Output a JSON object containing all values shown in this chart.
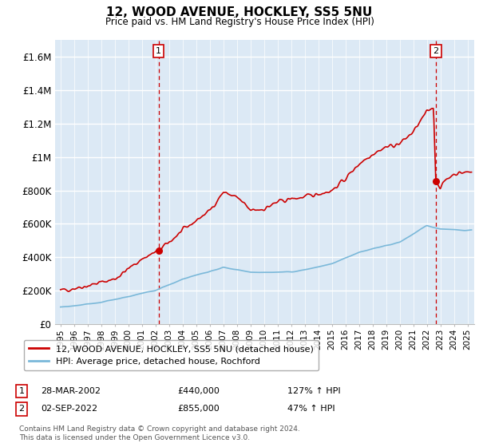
{
  "title": "12, WOOD AVENUE, HOCKLEY, SS5 5NU",
  "subtitle": "Price paid vs. HM Land Registry's House Price Index (HPI)",
  "ylim": [
    0,
    1700000
  ],
  "yticks": [
    0,
    200000,
    400000,
    600000,
    800000,
    1000000,
    1200000,
    1400000,
    1600000
  ],
  "ytick_labels": [
    "£0",
    "£200K",
    "£400K",
    "£600K",
    "£800K",
    "£1M",
    "£1.2M",
    "£1.4M",
    "£1.6M"
  ],
  "xlim_start": 1994.6,
  "xlim_end": 2025.5,
  "xtick_years": [
    1995,
    1996,
    1997,
    1998,
    1999,
    2000,
    2001,
    2002,
    2003,
    2004,
    2005,
    2006,
    2007,
    2008,
    2009,
    2010,
    2011,
    2012,
    2013,
    2014,
    2015,
    2016,
    2017,
    2018,
    2019,
    2020,
    2021,
    2022,
    2023,
    2024,
    2025
  ],
  "sale1_x": 2002.24,
  "sale1_y": 440000,
  "sale1_label": "1",
  "sale1_date": "28-MAR-2002",
  "sale1_price": "£440,000",
  "sale1_hpi": "127% ↑ HPI",
  "sale2_x": 2022.67,
  "sale2_y": 855000,
  "sale2_label": "2",
  "sale2_date": "02-SEP-2022",
  "sale2_price": "£855,000",
  "sale2_hpi": "47% ↑ HPI",
  "hpi_color": "#7ab8d9",
  "sale_color": "#cc0000",
  "vline_color": "#cc0000",
  "background_color": "#ffffff",
  "plot_bg_color": "#dce9f5",
  "grid_color": "#ffffff",
  "legend_sale_label": "12, WOOD AVENUE, HOCKLEY, SS5 5NU (detached house)",
  "legend_hpi_label": "HPI: Average price, detached house, Rochford",
  "footer": "Contains HM Land Registry data © Crown copyright and database right 2024.\nThis data is licensed under the Open Government Licence v3.0."
}
